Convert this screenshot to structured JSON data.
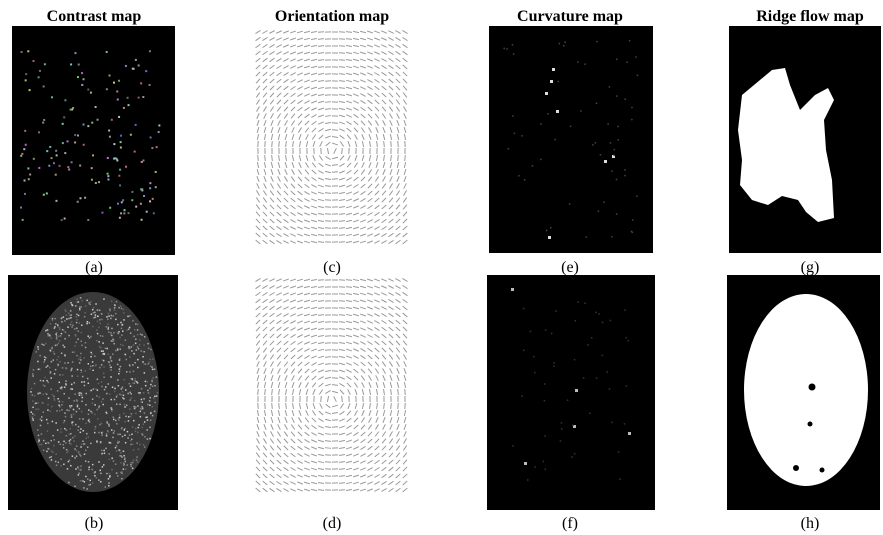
{
  "panels": [
    {
      "title": "Contrast map",
      "captions": [
        "(a)",
        "(b)"
      ]
    },
    {
      "title": "Orientation map",
      "captions": [
        "(c)",
        "(d)"
      ]
    },
    {
      "title": "Curvature map",
      "captions": [
        "(e)",
        "(f)"
      ]
    },
    {
      "title": "Ridge flow map",
      "captions": [
        "(g)",
        "(h)"
      ]
    }
  ]
}
